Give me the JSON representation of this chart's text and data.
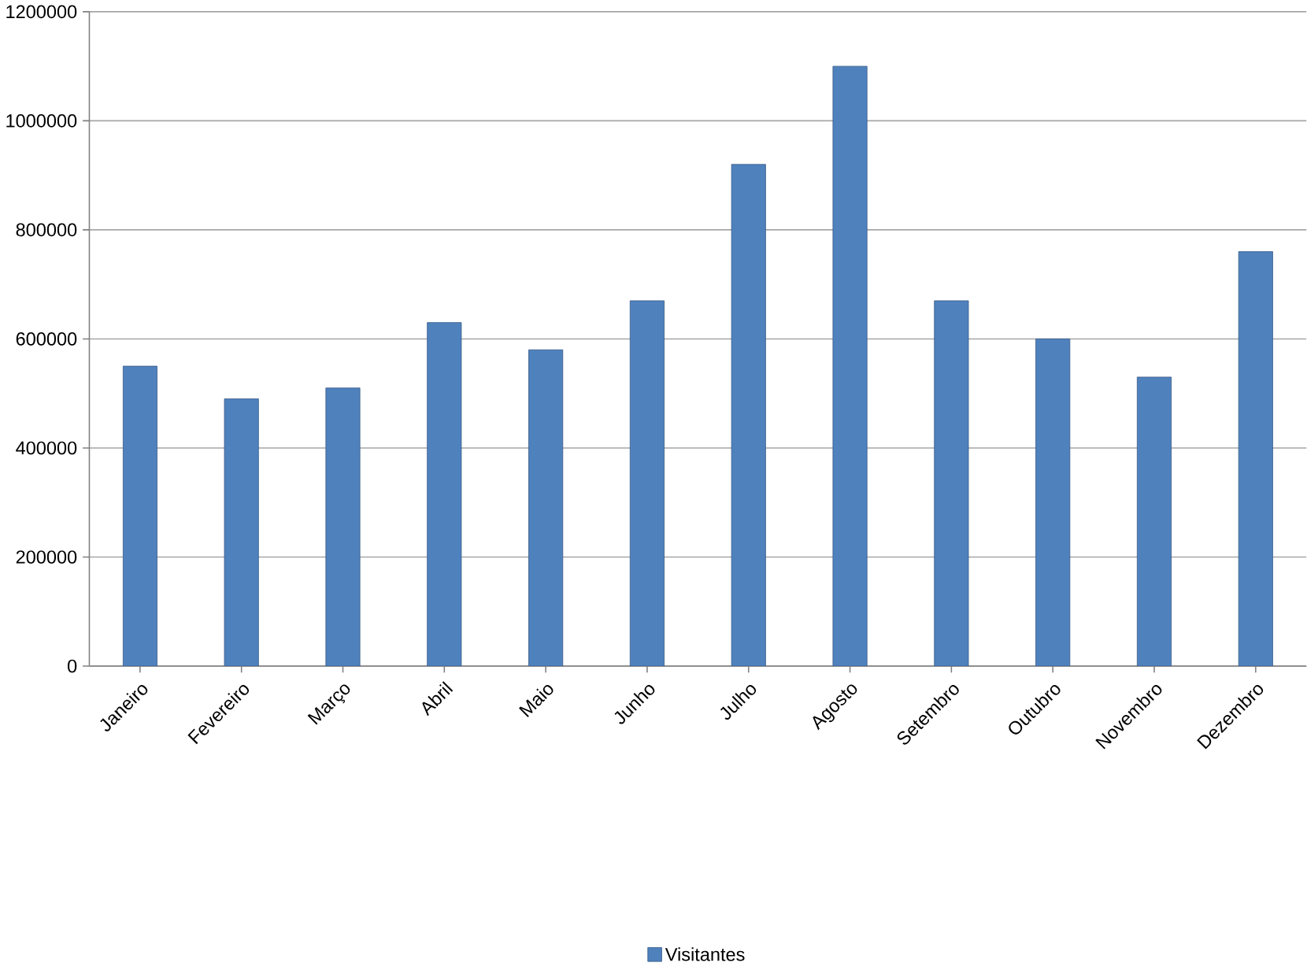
{
  "chart_data": {
    "type": "bar",
    "categories": [
      "Janeiro",
      "Fevereiro",
      "Março",
      "Abril",
      "Maio",
      "Junho",
      "Julho",
      "Agosto",
      "Setembro",
      "Outubro",
      "Novembro",
      "Dezembro"
    ],
    "series": [
      {
        "name": "Visitantes",
        "color": "#4f81bd",
        "values": [
          550000,
          490000,
          510000,
          630000,
          580000,
          670000,
          920000,
          1100000,
          670000,
          600000,
          530000,
          760000
        ]
      }
    ],
    "ylim": [
      0,
      1200000
    ],
    "yticks": [
      0,
      200000,
      400000,
      600000,
      800000,
      1000000,
      1200000
    ],
    "grid": "y",
    "legend": "bottom"
  }
}
